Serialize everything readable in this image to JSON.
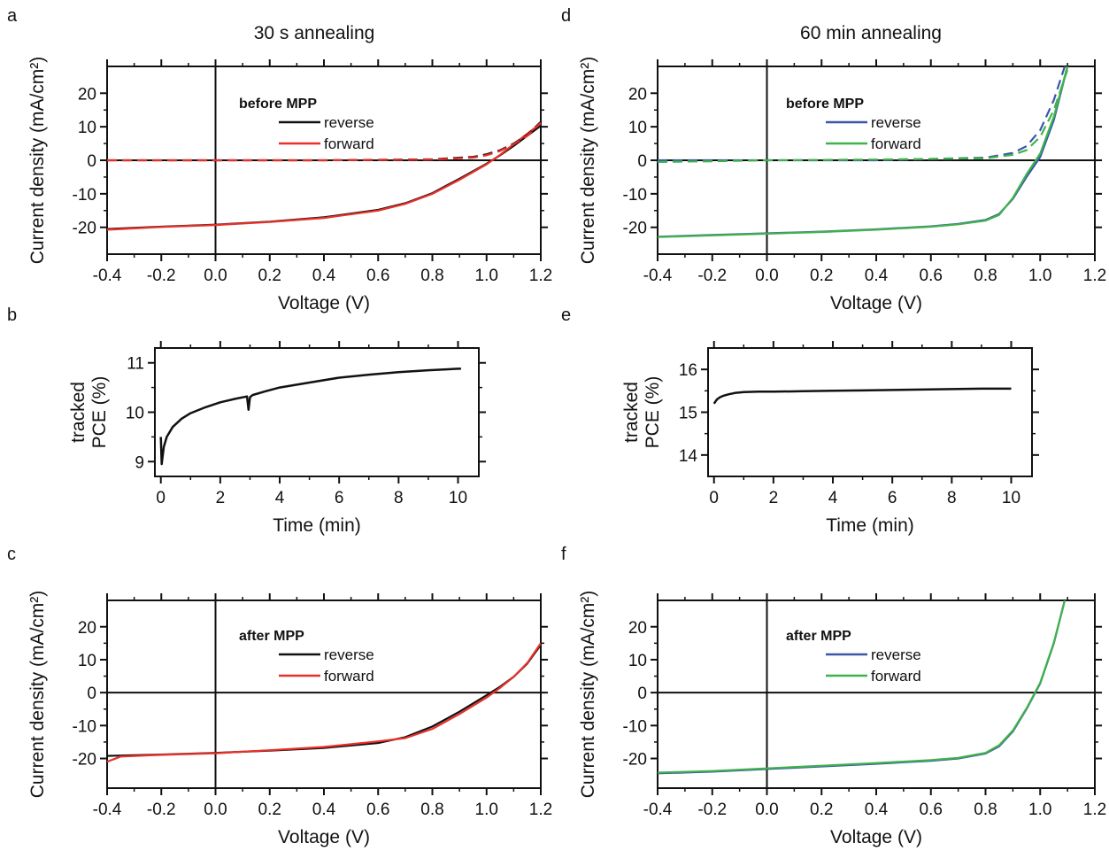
{
  "figure": {
    "panels": [
      "a",
      "b",
      "c",
      "d",
      "e",
      "f"
    ],
    "titles": {
      "a": "30 s annealing",
      "d": "60 min annealing"
    }
  },
  "colors": {
    "reverse_a": "#111111",
    "forward_a": "#e8302a",
    "reverse_d": "#3a56a8",
    "forward_d": "#3fb24a",
    "tracked": "#111111"
  },
  "chart_data": [
    {
      "panel": "a",
      "type": "line",
      "title": "30 s annealing",
      "xlabel": "Voltage (V)",
      "ylabel": "Current density (mA/cm²)",
      "xlim": [
        -0.4,
        1.2
      ],
      "ylim": [
        -28,
        28
      ],
      "xticks": [
        "-0.4",
        "-0.2",
        "0.0",
        "0.2",
        "0.4",
        "0.6",
        "0.8",
        "1.0",
        "1.2"
      ],
      "yticks": [
        "20",
        "10",
        "0",
        "-10",
        "-20"
      ],
      "legend_title": "before MPP",
      "series": [
        {
          "name": "reverse",
          "color": "#111111",
          "x": [
            -0.4,
            -0.2,
            0,
            0.2,
            0.4,
            0.6,
            0.7,
            0.8,
            0.9,
            1.0,
            1.05,
            1.1,
            1.2
          ],
          "y": [
            -20.5,
            -19.8,
            -19.2,
            -18.3,
            -17.0,
            -14.8,
            -12.8,
            -9.8,
            -5.5,
            -1.0,
            1.5,
            4.3,
            10.3
          ]
        },
        {
          "name": "forward",
          "color": "#e8302a",
          "x": [
            -0.4,
            -0.2,
            0,
            0.2,
            0.4,
            0.6,
            0.7,
            0.8,
            0.9,
            1.0,
            1.05,
            1.1,
            1.2
          ],
          "y": [
            -20.7,
            -19.9,
            -19.3,
            -18.4,
            -17.2,
            -15.0,
            -13.0,
            -10.0,
            -5.8,
            -1.2,
            1.6,
            4.8,
            11.0
          ]
        },
        {
          "name": "",
          "color": "#111111",
          "dashed": true,
          "x": [
            -0.4,
            0,
            0.4,
            0.8,
            0.95,
            1.0,
            1.05,
            1.1,
            1.15,
            1.2
          ],
          "y": [
            0,
            0,
            0,
            0.3,
            1.0,
            1.8,
            3.0,
            5.0,
            7.5,
            11.5
          ]
        },
        {
          "name": "",
          "color": "#e8302a",
          "dashed": true,
          "x": [
            -0.4,
            0,
            0.4,
            0.8,
            0.95,
            1.0,
            1.05,
            1.1,
            1.15,
            1.2
          ],
          "y": [
            0,
            0,
            0,
            0.2,
            0.8,
            1.5,
            2.8,
            4.8,
            7.3,
            11.2
          ]
        }
      ]
    },
    {
      "panel": "b",
      "type": "line",
      "xlabel": "Time (min)",
      "ylabel": "tracked PCE (%)",
      "xlim": [
        -0.2,
        10.7
      ],
      "ylim": [
        8.7,
        11.3
      ],
      "xticks": [
        "0",
        "2",
        "4",
        "6",
        "8",
        "10"
      ],
      "yticks": [
        "11",
        "10",
        "9"
      ],
      "series": [
        {
          "name": "",
          "color": "#111111",
          "x": [
            0,
            0.03,
            0.06,
            0.1,
            0.2,
            0.4,
            0.7,
            1.0,
            1.5,
            2.0,
            2.5,
            2.9,
            2.95,
            3.0,
            3.05,
            3.1,
            3.5,
            4.0,
            5.0,
            6.0,
            7.0,
            8.0,
            9.0,
            10.0,
            10.1
          ],
          "y": [
            9.5,
            8.95,
            9.1,
            9.3,
            9.5,
            9.7,
            9.87,
            9.98,
            10.1,
            10.2,
            10.27,
            10.32,
            10.05,
            10.3,
            10.33,
            10.35,
            10.42,
            10.5,
            10.6,
            10.7,
            10.76,
            10.81,
            10.85,
            10.88,
            10.88
          ]
        }
      ]
    },
    {
      "panel": "c",
      "type": "line",
      "xlabel": "Voltage (V)",
      "ylabel": "Current density (mA/cm²)",
      "xlim": [
        -0.4,
        1.2
      ],
      "ylim": [
        -29,
        28
      ],
      "xticks": [
        "-0.4",
        "-0.2",
        "0.0",
        "0.2",
        "0.4",
        "0.6",
        "0.8",
        "1.0",
        "1.2"
      ],
      "yticks": [
        "20",
        "10",
        "0",
        "-10",
        "-20"
      ],
      "legend_title": "after MPP",
      "series": [
        {
          "name": "reverse",
          "color": "#111111",
          "x": [
            -0.4,
            -0.2,
            0,
            0.2,
            0.4,
            0.6,
            0.7,
            0.8,
            0.9,
            1.0,
            1.05,
            1.1,
            1.15,
            1.2
          ],
          "y": [
            -19.2,
            -18.8,
            -18.3,
            -17.6,
            -16.8,
            -15.3,
            -13.5,
            -10.3,
            -5.8,
            -0.8,
            1.8,
            4.8,
            8.8,
            14.5
          ]
        },
        {
          "name": "forward",
          "color": "#e8302a",
          "x": [
            -0.4,
            -0.35,
            -0.2,
            0,
            0.2,
            0.4,
            0.6,
            0.7,
            0.8,
            0.9,
            1.0,
            1.05,
            1.1,
            1.15,
            1.2
          ],
          "y": [
            -21.0,
            -19.4,
            -18.9,
            -18.4,
            -17.5,
            -16.5,
            -14.8,
            -13.8,
            -11.0,
            -6.5,
            -1.5,
            1.5,
            4.8,
            9.0,
            15.0
          ]
        }
      ]
    },
    {
      "panel": "d",
      "type": "line",
      "title": "60 min annealing",
      "xlabel": "Voltage (V)",
      "ylabel": "Current density (mA/cm²)",
      "xlim": [
        -0.4,
        1.2
      ],
      "ylim": [
        -28,
        28
      ],
      "xticks": [
        "-0.4",
        "-0.2",
        "0.0",
        "0.2",
        "0.4",
        "0.6",
        "0.8",
        "1.0",
        "1.2"
      ],
      "yticks": [
        "20",
        "10",
        "0",
        "-10",
        "-20"
      ],
      "legend_title": "before MPP",
      "series": [
        {
          "name": "reverse",
          "color": "#3a56a8",
          "x": [
            -0.4,
            -0.2,
            0,
            0.2,
            0.4,
            0.6,
            0.7,
            0.8,
            0.85,
            0.9,
            0.95,
            1.0,
            1.05,
            1.1
          ],
          "y": [
            -22.8,
            -22.3,
            -21.8,
            -21.3,
            -20.6,
            -19.7,
            -19.0,
            -17.8,
            -16.0,
            -11.5,
            -5.0,
            1.0,
            12.0,
            28.0
          ]
        },
        {
          "name": "forward",
          "color": "#3fb24a",
          "x": [
            -0.4,
            -0.2,
            0,
            0.2,
            0.4,
            0.6,
            0.7,
            0.8,
            0.85,
            0.9,
            0.95,
            1.0,
            1.05,
            1.1
          ],
          "y": [
            -22.9,
            -22.4,
            -21.9,
            -21.4,
            -20.7,
            -19.8,
            -19.1,
            -18.0,
            -16.3,
            -11.2,
            -4.2,
            2.0,
            13.0,
            28.0
          ]
        },
        {
          "name": "",
          "color": "#3a56a8",
          "dashed": true,
          "x": [
            -0.4,
            0,
            0.4,
            0.8,
            0.9,
            0.95,
            1.0,
            1.05,
            1.09
          ],
          "y": [
            0,
            0,
            0,
            0.8,
            2.2,
            4.2,
            9.0,
            18.0,
            28.0
          ]
        },
        {
          "name": "",
          "color": "#3fb24a",
          "dashed": true,
          "x": [
            -0.4,
            -0.2,
            0,
            0.4,
            0.8,
            0.9,
            0.95,
            1.0,
            1.05,
            1.1
          ],
          "y": [
            -0.5,
            -0.3,
            0,
            0.2,
            0.6,
            1.6,
            3.0,
            7.0,
            15.0,
            27.0
          ]
        }
      ]
    },
    {
      "panel": "e",
      "type": "line",
      "xlabel": "Time (min)",
      "ylabel": "tracked PCE (%)",
      "xlim": [
        -0.2,
        10.7
      ],
      "ylim": [
        13.5,
        16.5
      ],
      "xticks": [
        "0",
        "2",
        "4",
        "6",
        "8",
        "10"
      ],
      "yticks": [
        "16",
        "15",
        "14"
      ],
      "series": [
        {
          "name": "",
          "color": "#111111",
          "x": [
            0,
            0.1,
            0.2,
            0.3,
            0.5,
            0.7,
            1.0,
            1.5,
            2.0,
            3.0,
            4.0,
            5.0,
            6.0,
            7.0,
            8.0,
            9.0,
            10.0
          ],
          "y": [
            15.2,
            15.3,
            15.35,
            15.38,
            15.42,
            15.45,
            15.47,
            15.48,
            15.48,
            15.49,
            15.5,
            15.51,
            15.52,
            15.53,
            15.54,
            15.55,
            15.55
          ]
        }
      ]
    },
    {
      "panel": "f",
      "type": "line",
      "xlabel": "Voltage (V)",
      "ylabel": "Current density (mA/cm²)",
      "xlim": [
        -0.4,
        1.2
      ],
      "ylim": [
        -29,
        28
      ],
      "xticks": [
        "-0.4",
        "-0.2",
        "0.0",
        "0.2",
        "0.4",
        "0.6",
        "0.8",
        "1.0",
        "1.2"
      ],
      "yticks": [
        "20",
        "10",
        "0",
        "-10",
        "-20"
      ],
      "legend_title": "after MPP",
      "series": [
        {
          "name": "reverse",
          "color": "#3a56a8",
          "x": [
            -0.4,
            -0.2,
            0,
            0.2,
            0.4,
            0.6,
            0.7,
            0.8,
            0.85,
            0.9,
            0.95,
            1.0,
            1.05,
            1.09
          ],
          "y": [
            -24.5,
            -24.0,
            -23.2,
            -22.4,
            -21.6,
            -20.7,
            -20.0,
            -18.5,
            -16.3,
            -11.8,
            -5.0,
            2.8,
            15.0,
            28.0
          ]
        },
        {
          "name": "forward",
          "color": "#3fb24a",
          "x": [
            -0.4,
            -0.2,
            0,
            0.2,
            0.4,
            0.6,
            0.7,
            0.8,
            0.85,
            0.9,
            0.95,
            1.0,
            1.05,
            1.09
          ],
          "y": [
            -24.3,
            -23.8,
            -23.0,
            -22.2,
            -21.4,
            -20.5,
            -19.8,
            -18.3,
            -16.0,
            -11.5,
            -4.8,
            3.0,
            15.2,
            28.0
          ]
        }
      ]
    }
  ]
}
